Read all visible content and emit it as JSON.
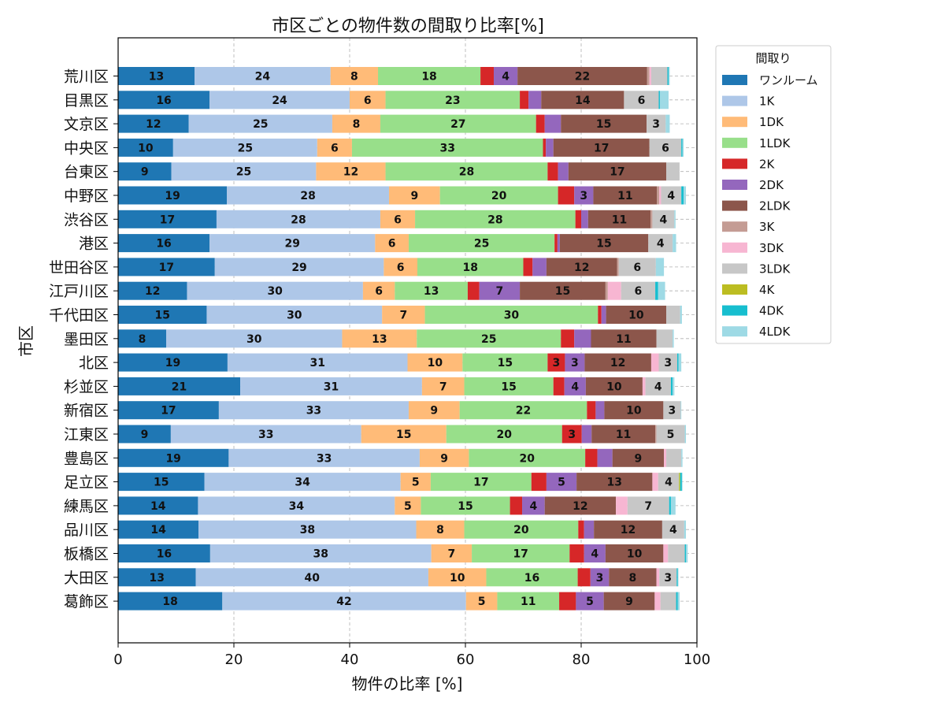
{
  "chart_data": {
    "type": "bar",
    "orientation": "horizontal",
    "stacked": true,
    "title": "市区ごとの物件数の間取り比率[%]",
    "xlabel": "物件の比率 [%]",
    "ylabel": "市区",
    "xlim": [
      0,
      100
    ],
    "xticks": [
      0,
      20,
      40,
      60,
      80,
      100
    ],
    "grid": true,
    "legend_title": "間取り",
    "legend_position": "upper-right-outside",
    "categories": [
      "荒川区",
      "目黒区",
      "文京区",
      "中央区",
      "台東区",
      "中野区",
      "渋谷区",
      "港区",
      "世田谷区",
      "江戸川区",
      "千代田区",
      "墨田区",
      "北区",
      "杉並区",
      "新宿区",
      "江東区",
      "豊島区",
      "足立区",
      "練馬区",
      "品川区",
      "板橋区",
      "大田区",
      "葛飾区"
    ],
    "series": [
      {
        "name": "ワンルーム",
        "color": "#1f77b4",
        "values": [
          13.2,
          15.8,
          12.2,
          9.5,
          9.2,
          18.8,
          17.0,
          15.8,
          16.7,
          11.9,
          15.3,
          8.3,
          18.9,
          21.1,
          17.4,
          9.1,
          19.1,
          14.9,
          13.8,
          13.9,
          15.9,
          13.4,
          18.0
        ]
      },
      {
        "name": "1K",
        "color": "#aec7e8",
        "values": [
          23.5,
          24.2,
          24.8,
          24.9,
          25.0,
          28.0,
          28.3,
          28.6,
          29.2,
          30.4,
          30.3,
          30.4,
          31.1,
          31.4,
          32.8,
          32.9,
          33.0,
          33.9,
          34.0,
          37.6,
          38.2,
          40.2,
          42.1
        ]
      },
      {
        "name": "1DK",
        "color": "#ffbb78",
        "values": [
          8.2,
          6.2,
          8.3,
          6.0,
          12.0,
          8.8,
          6.0,
          5.8,
          5.8,
          5.5,
          7.4,
          12.9,
          9.5,
          7.3,
          8.8,
          14.7,
          8.5,
          5.2,
          4.5,
          8.3,
          7.0,
          10.0,
          5.4
        ]
      },
      {
        "name": "1LDK",
        "color": "#98df8a",
        "values": [
          17.7,
          23.2,
          26.9,
          33.0,
          28.0,
          20.4,
          27.7,
          25.2,
          18.3,
          12.6,
          29.9,
          24.9,
          14.7,
          15.4,
          22.0,
          20.0,
          20.1,
          17.4,
          15.4,
          19.7,
          16.9,
          15.8,
          10.7
        ]
      },
      {
        "name": "2K",
        "color": "#d62728",
        "values": [
          2.3,
          1.5,
          1.5,
          0.5,
          1.8,
          2.8,
          1.0,
          0.5,
          1.6,
          2.0,
          0.6,
          2.3,
          3.0,
          1.9,
          1.5,
          3.4,
          2.1,
          2.6,
          2.1,
          1.0,
          2.5,
          2.2,
          2.9
        ]
      },
      {
        "name": "2DK",
        "color": "#9467bd",
        "values": [
          4.1,
          2.2,
          2.8,
          1.3,
          1.8,
          3.3,
          1.2,
          0.4,
          2.4,
          7.0,
          0.8,
          2.9,
          3.4,
          3.7,
          1.5,
          1.7,
          2.6,
          5.2,
          3.9,
          1.7,
          3.7,
          3.2,
          4.8
        ]
      },
      {
        "name": "2LDK",
        "color": "#8c564b",
        "values": [
          22.4,
          14.3,
          14.8,
          16.6,
          16.9,
          11.0,
          10.8,
          15.3,
          12.2,
          14.8,
          10.4,
          11.3,
          11.5,
          9.8,
          10.2,
          11.0,
          8.9,
          13.1,
          12.3,
          11.8,
          10.0,
          8.2,
          8.8
        ]
      },
      {
        "name": "3K",
        "color": "#c49c94",
        "values": [
          0.4,
          0,
          0,
          0,
          0,
          0.4,
          0.3,
          0,
          0.3,
          0.4,
          0,
          0,
          0,
          0,
          0,
          0.2,
          0,
          0,
          0,
          0,
          0,
          0,
          0
        ]
      },
      {
        "name": "3DK",
        "color": "#f7b6d2",
        "values": [
          0.3,
          0,
          0,
          0,
          0,
          0.3,
          0,
          0,
          0,
          2.3,
          0,
          0,
          1.3,
          0.5,
          0,
          0,
          0.4,
          1.0,
          2.0,
          0,
          0.8,
          0.5,
          1.0
        ]
      },
      {
        "name": "3LDK",
        "color": "#c7c7c7",
        "values": [
          2.8,
          6.0,
          3.3,
          5.5,
          2.3,
          3.5,
          3.8,
          4.2,
          6.4,
          5.9,
          2.4,
          2.8,
          3.2,
          4.4,
          3.0,
          4.9,
          2.6,
          3.6,
          7.2,
          3.8,
          2.9,
          3.0,
          2.7
        ]
      },
      {
        "name": "4K",
        "color": "#bcbd22",
        "values": [
          0,
          0,
          0,
          0,
          0,
          0,
          0,
          0,
          0,
          0,
          0,
          0,
          0,
          0,
          0,
          0,
          0,
          0.2,
          0,
          0,
          0,
          0,
          0
        ]
      },
      {
        "name": "4DK",
        "color": "#17becf",
        "values": [
          0.2,
          0.2,
          0,
          0.2,
          0,
          0.4,
          0,
          0,
          0,
          0.5,
          0,
          0,
          0.2,
          0.3,
          0,
          0,
          0,
          0.3,
          0.3,
          0,
          0.2,
          0.2,
          0.3
        ]
      },
      {
        "name": "4LDK",
        "color": "#9edae5",
        "values": [
          0.2,
          1.5,
          0.7,
          0.2,
          0,
          0.4,
          0.2,
          0.6,
          1.4,
          1.2,
          0.3,
          0.2,
          0.5,
          0.3,
          0.1,
          0.2,
          0.2,
          0.1,
          0.8,
          0.3,
          0.3,
          0.1,
          0.3
        ]
      }
    ],
    "data_labels": {
      "minimum_shown": 3,
      "format": "integer"
    }
  }
}
